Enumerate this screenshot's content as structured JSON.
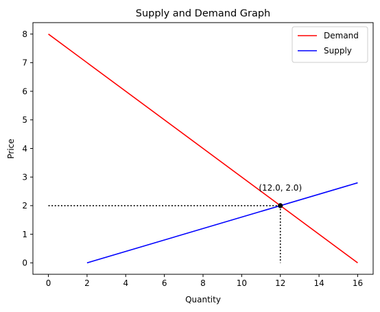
{
  "chart_data": {
    "type": "line",
    "title": "Supply and Demand Graph",
    "xlabel": "Quantity",
    "ylabel": "Price",
    "xlim": [
      -0.8,
      16.8
    ],
    "ylim": [
      -0.4,
      8.4
    ],
    "xticks": [
      0,
      2,
      4,
      6,
      8,
      10,
      12,
      14,
      16
    ],
    "yticks": [
      0,
      1,
      2,
      3,
      4,
      5,
      6,
      7,
      8
    ],
    "grid": false,
    "legend_position": "top-right",
    "series": [
      {
        "name": "Demand",
        "color": "#ff0000",
        "x": [
          0,
          16
        ],
        "y": [
          8,
          0
        ]
      },
      {
        "name": "Supply",
        "color": "#0000ff",
        "x": [
          2,
          16
        ],
        "y": [
          0,
          2.8
        ]
      }
    ],
    "equilibrium": {
      "x": 12.0,
      "y": 2.0,
      "label": "(12.0, 2.0)",
      "guide_color": "#000000",
      "guide_x_start": 0
    }
  }
}
